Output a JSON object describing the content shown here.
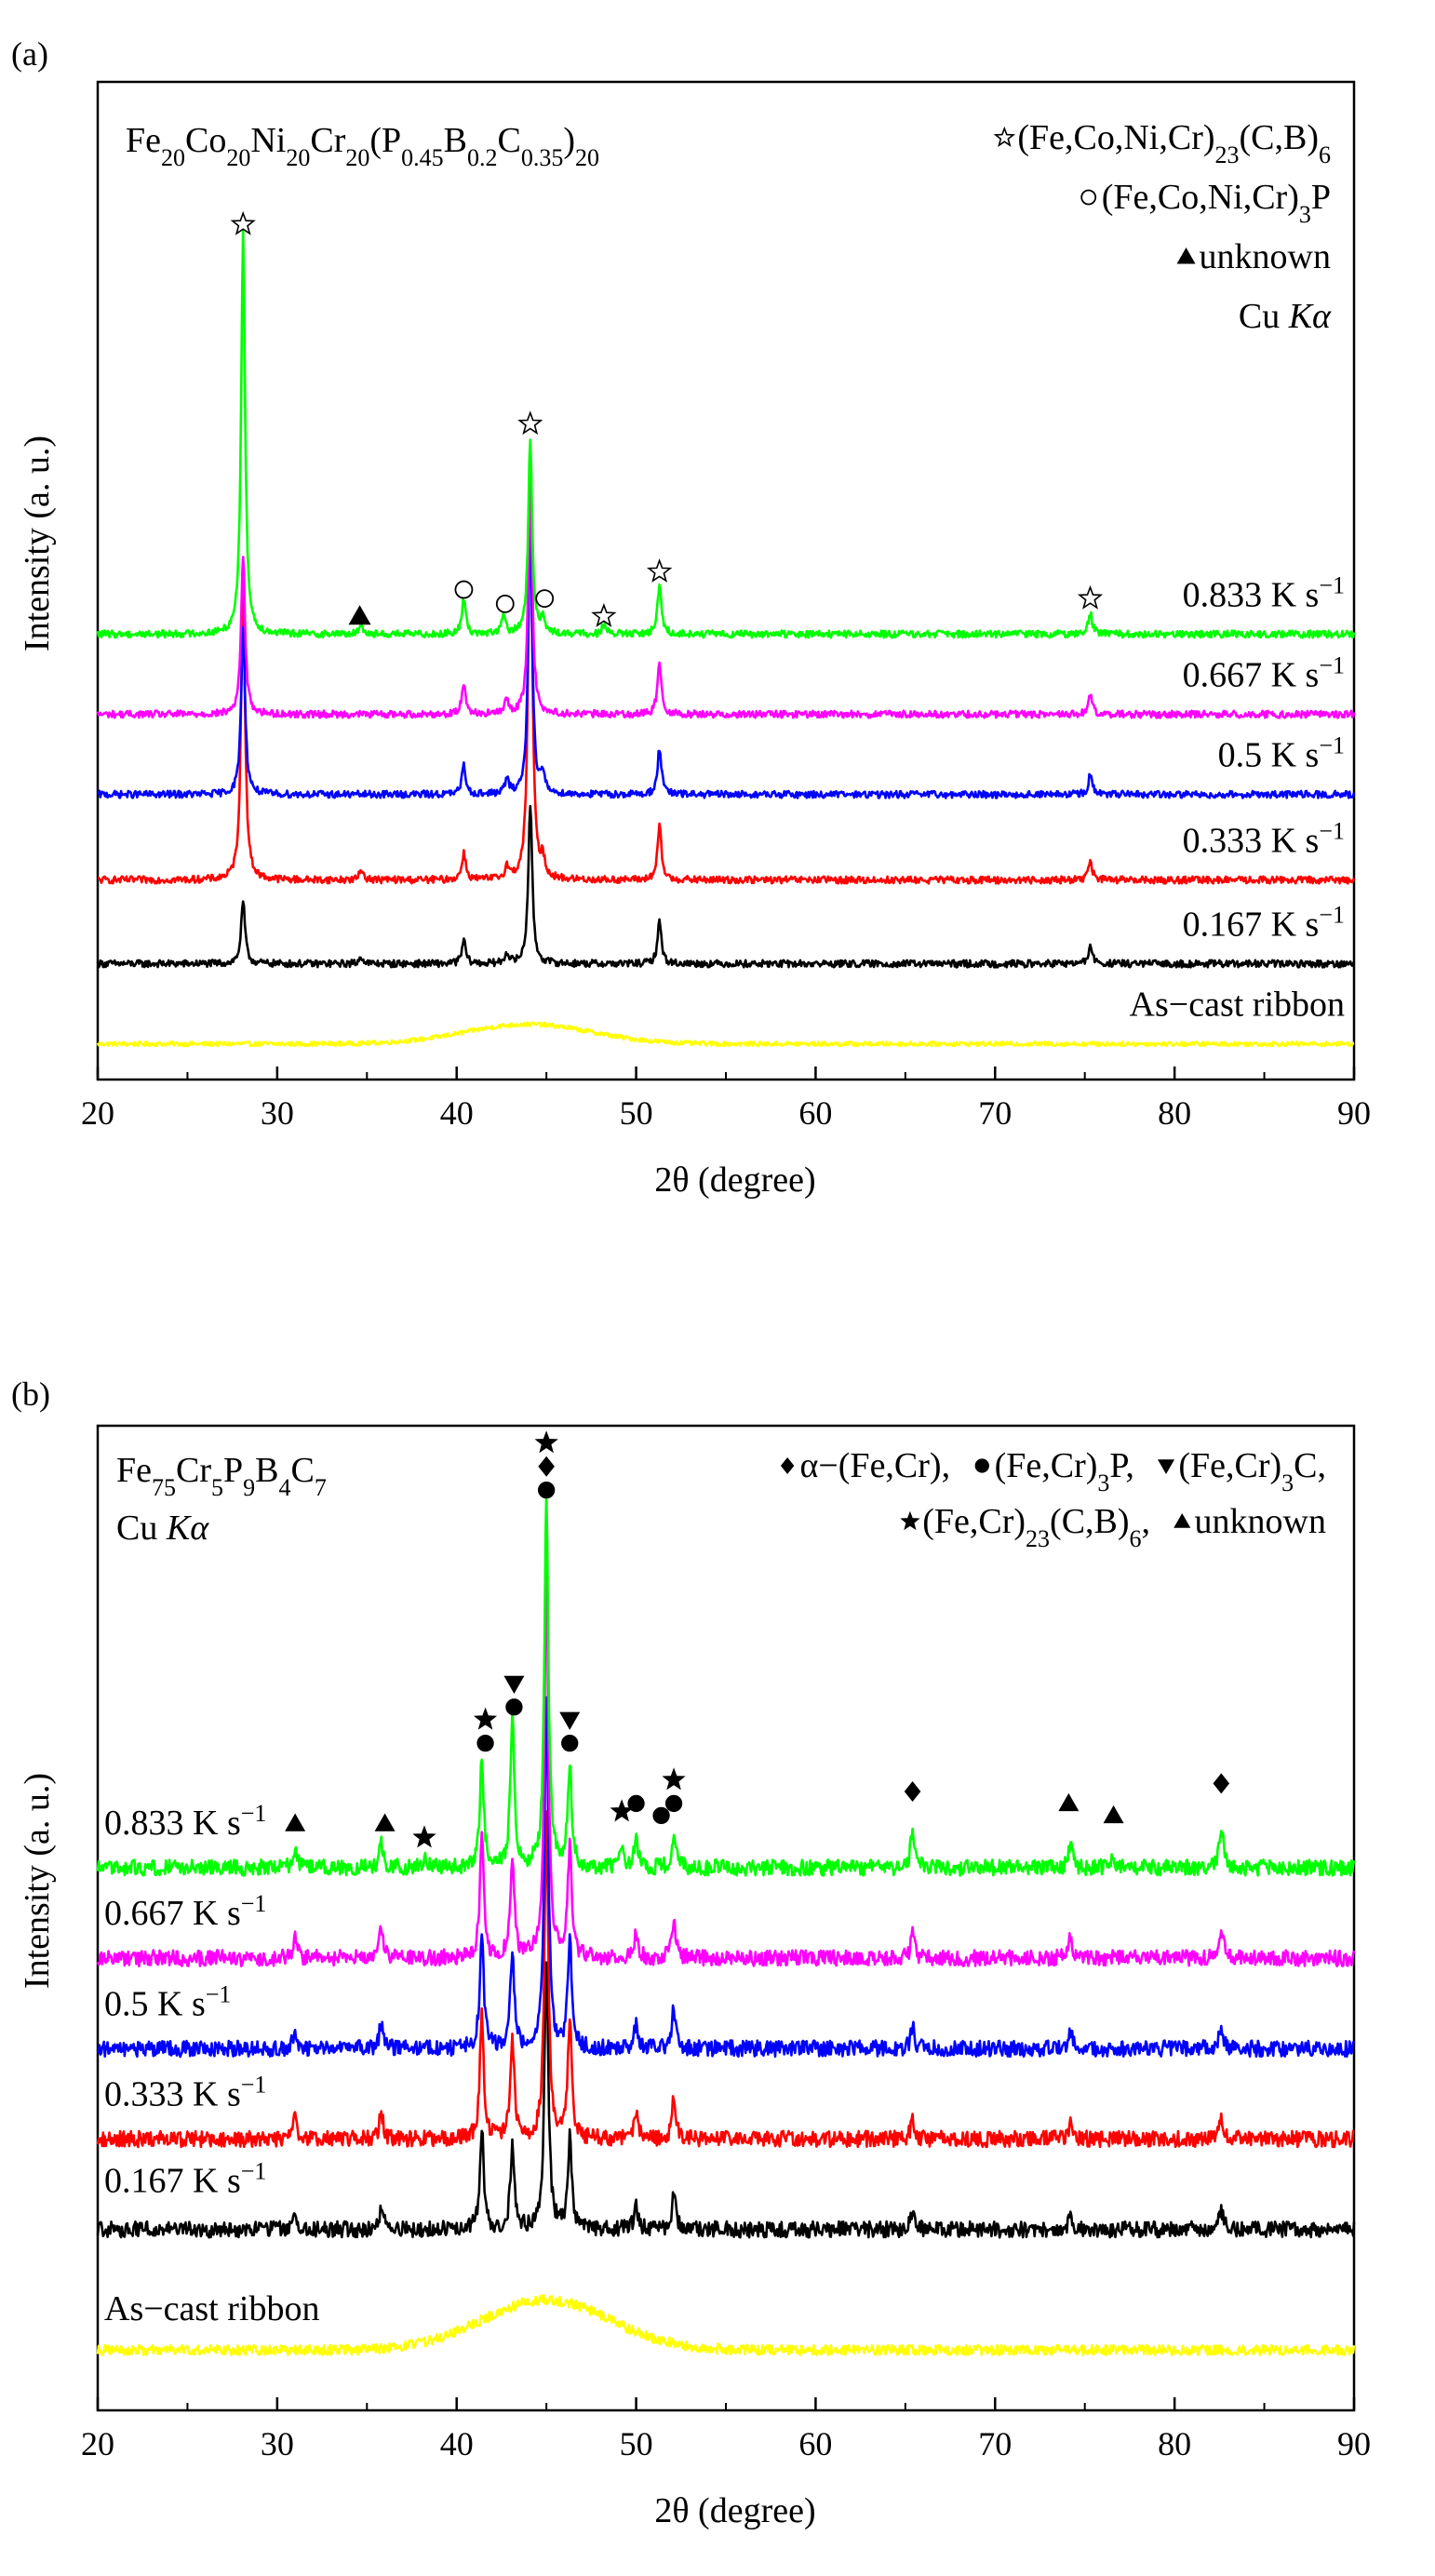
{
  "chart_data": [
    {
      "panel_label": "(a)",
      "type": "line",
      "title": "Fe20Co20Ni20Cr20(P0.45B0.2C0.35)20",
      "composition_parts": [
        {
          "t": "Fe"
        },
        {
          "t": "20",
          "sub": true
        },
        {
          "t": "Co"
        },
        {
          "t": "20",
          "sub": true
        },
        {
          "t": "Ni"
        },
        {
          "t": "20",
          "sub": true
        },
        {
          "t": "Cr"
        },
        {
          "t": "20",
          "sub": true
        },
        {
          "t": "(P"
        },
        {
          "t": "0.45",
          "sub": true
        },
        {
          "t": "B"
        },
        {
          "t": "0.2",
          "sub": true
        },
        {
          "t": "C"
        },
        {
          "t": "0.35",
          "sub": true
        },
        {
          "t": ")"
        },
        {
          "t": "20",
          "sub": true
        }
      ],
      "xlabel": "2θ (degree)",
      "ylabel": "Intensity (a. u.)",
      "xlim": [
        20,
        90
      ],
      "xticks": [
        20,
        30,
        40,
        50,
        60,
        70,
        80,
        90
      ],
      "ylim": [
        -0.2,
        5.4
      ],
      "legend_lines": [
        {
          "marker": "open-star",
          "parts": [
            {
              "t": "(Fe,Co,Ni,Cr)"
            },
            {
              "t": "23",
              "sub": true
            },
            {
              "t": "(C,B)"
            },
            {
              "t": "6",
              "sub": true
            }
          ]
        },
        {
          "marker": "open-circle",
          "parts": [
            {
              "t": "(Fe,Co,Ni,Cr)"
            },
            {
              "t": "3",
              "sub": true
            },
            {
              "t": "P"
            }
          ]
        },
        {
          "marker": "triangle",
          "parts": [
            {
              "t": "unknown"
            }
          ]
        },
        {
          "marker": "",
          "parts": [
            {
              "t": "Cu "
            },
            {
              "t": "Kα",
              "italic": true
            }
          ]
        }
      ],
      "series": [
        {
          "name": "As−cast ribbon",
          "color": "#ffff00",
          "baseline": 0.0,
          "noise": 0.012,
          "hump": {
            "center": 44,
            "width": 5,
            "height": 0.11
          },
          "peaks": []
        },
        {
          "name": "0.167 K s−1",
          "color": "#000000",
          "baseline": 0.45,
          "noise": 0.02,
          "peaks": [
            [
              28.1,
              0.35
            ],
            [
              34.7,
              0.04
            ],
            [
              40.4,
              0.13
            ],
            [
              42.8,
              0.06
            ],
            [
              44.1,
              0.9
            ],
            [
              51.3,
              0.24
            ],
            [
              75.3,
              0.1
            ]
          ]
        },
        {
          "name": "0.333 K s−1",
          "color": "#ff0000",
          "baseline": 0.92,
          "noise": 0.02,
          "peaks": [
            [
              28.1,
              1.7
            ],
            [
              34.7,
              0.06
            ],
            [
              40.4,
              0.15
            ],
            [
              42.8,
              0.07
            ],
            [
              44.1,
              2.3
            ],
            [
              44.8,
              0.1
            ],
            [
              51.3,
              0.3
            ],
            [
              75.3,
              0.11
            ]
          ]
        },
        {
          "name": "0.5 K s−1",
          "color": "#0000ff",
          "baseline": 1.4,
          "noise": 0.02,
          "peaks": [
            [
              28.1,
              0.95
            ],
            [
              40.4,
              0.16
            ],
            [
              42.8,
              0.08
            ],
            [
              44.1,
              1.55
            ],
            [
              44.8,
              0.1
            ],
            [
              51.3,
              0.26
            ],
            [
              75.3,
              0.11
            ]
          ]
        },
        {
          "name": "0.667 K s−1",
          "color": "#ff00ff",
          "baseline": 1.85,
          "noise": 0.02,
          "peaks": [
            [
              28.1,
              0.9
            ],
            [
              40.4,
              0.18
            ],
            [
              42.8,
              0.08
            ],
            [
              44.1,
              1.35
            ],
            [
              51.3,
              0.3
            ],
            [
              75.3,
              0.11
            ]
          ]
        },
        {
          "name": "0.833 K s−1",
          "color": "#00ff00",
          "baseline": 2.3,
          "noise": 0.02,
          "peaks": [
            [
              28.1,
              2.25
            ],
            [
              34.7,
              0.05
            ],
            [
              40.4,
              0.2
            ],
            [
              42.6,
              0.1
            ],
            [
              44.1,
              1.1
            ],
            [
              44.8,
              0.08
            ],
            [
              48.2,
              0.05
            ],
            [
              51.3,
              0.28
            ],
            [
              75.3,
              0.12
            ]
          ]
        }
      ],
      "series_labels": [
        {
          "parts": [
            {
              "t": "As−cast ribbon"
            }
          ]
        },
        {
          "parts": [
            {
              "t": "0.167 K s"
            },
            {
              "t": "−1",
              "sup": true
            }
          ]
        },
        {
          "parts": [
            {
              "t": "0.333 K s"
            },
            {
              "t": "−1",
              "sup": true
            }
          ]
        },
        {
          "parts": [
            {
              "t": "0.5 K s"
            },
            {
              "t": "−1",
              "sup": true
            }
          ]
        },
        {
          "parts": [
            {
              "t": "0.667 K s"
            },
            {
              "t": "−1",
              "sup": true
            }
          ]
        },
        {
          "parts": [
            {
              "t": "0.833 K s"
            },
            {
              "t": "−1",
              "sup": true
            }
          ]
        }
      ],
      "peak_markers": [
        {
          "x": 28.1,
          "y": 4.6,
          "symbols": [
            "open-star"
          ]
        },
        {
          "x": 34.6,
          "y": 2.4,
          "symbols": [
            "triangle"
          ]
        },
        {
          "x": 40.4,
          "y": 2.55,
          "symbols": [
            "open-circle"
          ]
        },
        {
          "x": 42.7,
          "y": 2.47,
          "symbols": [
            "open-circle"
          ]
        },
        {
          "x": 44.1,
          "y": 3.48,
          "symbols": [
            "open-star"
          ]
        },
        {
          "x": 44.9,
          "y": 2.5,
          "symbols": [
            "open-circle"
          ]
        },
        {
          "x": 48.2,
          "y": 2.4,
          "symbols": [
            "open-star"
          ]
        },
        {
          "x": 51.3,
          "y": 2.65,
          "symbols": [
            "open-star"
          ]
        },
        {
          "x": 75.3,
          "y": 2.5,
          "symbols": [
            "open-star"
          ]
        }
      ]
    },
    {
      "panel_label": "(b)",
      "type": "line",
      "title": "Fe75Cr5P9B4C7",
      "composition_parts": [
        {
          "t": "Fe"
        },
        {
          "t": "75",
          "sub": true
        },
        {
          "t": "Cr"
        },
        {
          "t": "5",
          "sub": true
        },
        {
          "t": "P"
        },
        {
          "t": "9",
          "sub": true
        },
        {
          "t": "B"
        },
        {
          "t": "4",
          "sub": true
        },
        {
          "t": "C"
        },
        {
          "t": "7",
          "sub": true
        }
      ],
      "subtitle_parts": [
        {
          "t": "Cu "
        },
        {
          "t": "Kα",
          "italic": true
        }
      ],
      "xlabel": "2θ (degree)",
      "ylabel": "Intensity (a. u.)",
      "xlim": [
        20,
        90
      ],
      "xticks": [
        20,
        30,
        40,
        50,
        60,
        70,
        80,
        90
      ],
      "ylim": [
        -0.3,
        4.6
      ],
      "legend_lines": [
        {
          "items": [
            {
              "marker": "diamond",
              "parts": [
                {
                  "t": "α−(Fe,Cr), "
                }
              ]
            },
            {
              "marker": "circle",
              "parts": [
                {
                  "t": "(Fe,Cr)"
                },
                {
                  "t": "3",
                  "sub": true
                },
                {
                  "t": "P, "
                }
              ]
            },
            {
              "marker": "down-triangle",
              "parts": [
                {
                  "t": "(Fe,Cr)"
                },
                {
                  "t": "3",
                  "sub": true
                },
                {
                  "t": "C,"
                }
              ]
            }
          ]
        },
        {
          "items": [
            {
              "marker": "star",
              "parts": [
                {
                  "t": "(Fe,Cr)"
                },
                {
                  "t": "23",
                  "sub": true
                },
                {
                  "t": "(C,B)"
                },
                {
                  "t": "6",
                  "sub": true
                },
                {
                  "t": ", "
                }
              ]
            },
            {
              "marker": "triangle",
              "parts": [
                {
                  "t": "unknown"
                }
              ]
            }
          ]
        }
      ],
      "series": [
        {
          "name": "As−cast ribbon",
          "color": "#ffff00",
          "baseline": 0.0,
          "noise": 0.025,
          "hump": {
            "center": 45,
            "width": 5,
            "height": 0.25
          },
          "peaks": []
        },
        {
          "name": "0.167 K s−1",
          "color": "#000000",
          "baseline": 0.6,
          "noise": 0.04,
          "peaks": [
            [
              31,
              0.08
            ],
            [
              35.8,
              0.12
            ],
            [
              41.4,
              0.5
            ],
            [
              43.1,
              0.4
            ],
            [
              45.0,
              1.35
            ],
            [
              46.3,
              0.45
            ],
            [
              50.0,
              0.12
            ],
            [
              52.1,
              0.17
            ],
            [
              65.4,
              0.08
            ],
            [
              74.2,
              0.08
            ],
            [
              82.6,
              0.1
            ]
          ]
        },
        {
          "name": "0.333 K s−1",
          "color": "#ff0000",
          "baseline": 1.05,
          "noise": 0.04,
          "peaks": [
            [
              31,
              0.1
            ],
            [
              35.8,
              0.13
            ],
            [
              41.4,
              0.62
            ],
            [
              43.1,
              0.5
            ],
            [
              45.0,
              1.6
            ],
            [
              46.3,
              0.6
            ],
            [
              50.0,
              0.13
            ],
            [
              52.1,
              0.2
            ],
            [
              65.4,
              0.09
            ],
            [
              74.2,
              0.08
            ],
            [
              82.6,
              0.12
            ]
          ]
        },
        {
          "name": "0.5 K s−1",
          "color": "#0000ff",
          "baseline": 1.5,
          "noise": 0.04,
          "peaks": [
            [
              31,
              0.1
            ],
            [
              35.8,
              0.13
            ],
            [
              41.4,
              0.58
            ],
            [
              43.1,
              0.48
            ],
            [
              45.0,
              1.75
            ],
            [
              46.3,
              0.55
            ],
            [
              50.0,
              0.13
            ],
            [
              52.1,
              0.2
            ],
            [
              65.4,
              0.11
            ],
            [
              74.2,
              0.09
            ],
            [
              82.6,
              0.12
            ]
          ]
        },
        {
          "name": "0.667 K s−1",
          "color": "#ff00ff",
          "baseline": 1.95,
          "noise": 0.04,
          "peaks": [
            [
              31,
              0.1
            ],
            [
              35.8,
              0.14
            ],
            [
              41.4,
              0.6
            ],
            [
              43.1,
              0.52
            ],
            [
              45.0,
              1.95
            ],
            [
              46.3,
              0.55
            ],
            [
              50.0,
              0.14
            ],
            [
              52.1,
              0.2
            ],
            [
              65.4,
              0.12
            ],
            [
              74.2,
              0.1
            ],
            [
              82.6,
              0.16
            ]
          ]
        },
        {
          "name": "0.833 K s−1",
          "color": "#00ff00",
          "baseline": 2.4,
          "noise": 0.04,
          "peaks": [
            [
              31,
              0.1
            ],
            [
              35.8,
              0.12
            ],
            [
              38.2,
              0.05
            ],
            [
              41.4,
              0.55
            ],
            [
              43.1,
              0.75
            ],
            [
              45.0,
              1.85
            ],
            [
              46.3,
              0.52
            ],
            [
              49.2,
              0.1
            ],
            [
              50.0,
              0.15
            ],
            [
              52.1,
              0.18
            ],
            [
              65.4,
              0.2
            ],
            [
              74.2,
              0.12
            ],
            [
              76.6,
              0.06
            ],
            [
              82.6,
              0.22
            ]
          ]
        }
      ],
      "series_labels": [
        {
          "parts": [
            {
              "t": "As−cast ribbon"
            }
          ]
        },
        {
          "parts": [
            {
              "t": "0.167 K s"
            },
            {
              "t": "−1",
              "sup": true
            }
          ]
        },
        {
          "parts": [
            {
              "t": "0.333 K s"
            },
            {
              "t": "−1",
              "sup": true
            }
          ]
        },
        {
          "parts": [
            {
              "t": "0.5 K s"
            },
            {
              "t": "−1",
              "sup": true
            }
          ]
        },
        {
          "parts": [
            {
              "t": "0.667 K s"
            },
            {
              "t": "−1",
              "sup": true
            }
          ]
        },
        {
          "parts": [
            {
              "t": "0.833 K s"
            },
            {
              "t": "−1",
              "sup": true
            }
          ]
        }
      ],
      "peak_markers": [
        {
          "x": 31.0,
          "y": 2.62,
          "symbols": [
            "triangle"
          ]
        },
        {
          "x": 36.0,
          "y": 2.62,
          "symbols": [
            "triangle"
          ]
        },
        {
          "x": 38.2,
          "y": 2.55,
          "symbols": [
            "star"
          ]
        },
        {
          "x": 41.6,
          "y": 3.02,
          "symbols": [
            "circle",
            "star"
          ]
        },
        {
          "x": 43.2,
          "y": 3.2,
          "symbols": [
            "circle",
            "down-triangle"
          ]
        },
        {
          "x": 45.0,
          "y": 4.28,
          "symbols": [
            "circle",
            "diamond",
            "star"
          ]
        },
        {
          "x": 46.3,
          "y": 3.02,
          "symbols": [
            "circle",
            "down-triangle"
          ]
        },
        {
          "x": 49.2,
          "y": 2.68,
          "symbols": [
            "star"
          ]
        },
        {
          "x": 50.0,
          "y": 2.72,
          "symbols": [
            "circle"
          ]
        },
        {
          "x": 51.4,
          "y": 2.66,
          "symbols": [
            "circle"
          ]
        },
        {
          "x": 52.1,
          "y": 2.72,
          "symbols": [
            "circle",
            "star"
          ]
        },
        {
          "x": 65.4,
          "y": 2.78,
          "symbols": [
            "diamond"
          ]
        },
        {
          "x": 74.1,
          "y": 2.72,
          "symbols": [
            "triangle"
          ]
        },
        {
          "x": 76.6,
          "y": 2.66,
          "symbols": [
            "triangle"
          ]
        },
        {
          "x": 82.6,
          "y": 2.82,
          "symbols": [
            "diamond"
          ]
        }
      ]
    }
  ]
}
